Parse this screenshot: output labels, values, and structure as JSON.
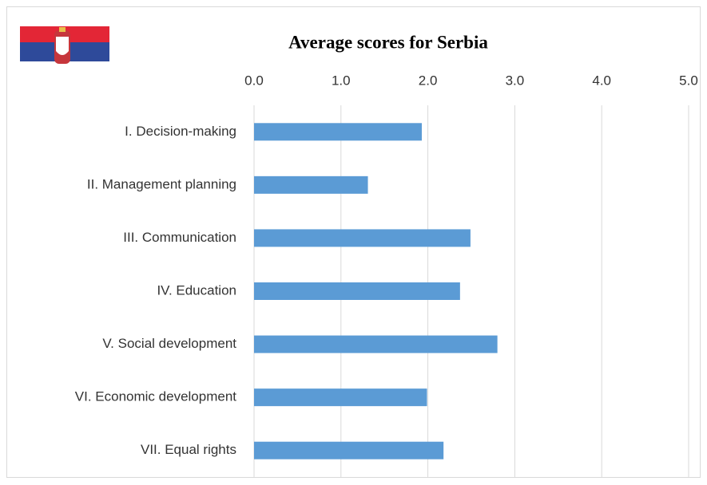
{
  "chart_data": {
    "type": "bar",
    "orientation": "horizontal",
    "title": "Average scores for Serbia",
    "categories": [
      "I. Decision-making",
      "II. Management planning",
      "III. Communication",
      "IV. Education",
      "V. Social development",
      "VI. Economic development",
      "VII. Equal rights"
    ],
    "values": [
      1.93,
      1.31,
      2.49,
      2.37,
      2.8,
      1.99,
      2.18
    ],
    "color": "#5b9bd5",
    "xlim": [
      0,
      5
    ],
    "xticks": [
      {
        "value": 0,
        "label": "0.0"
      },
      {
        "value": 1,
        "label": "1.0"
      },
      {
        "value": 2,
        "label": "2.0"
      },
      {
        "value": 3,
        "label": "3.0"
      },
      {
        "value": 4,
        "label": "4.0"
      },
      {
        "value": 5,
        "label": "5.0"
      }
    ],
    "grid": true
  }
}
